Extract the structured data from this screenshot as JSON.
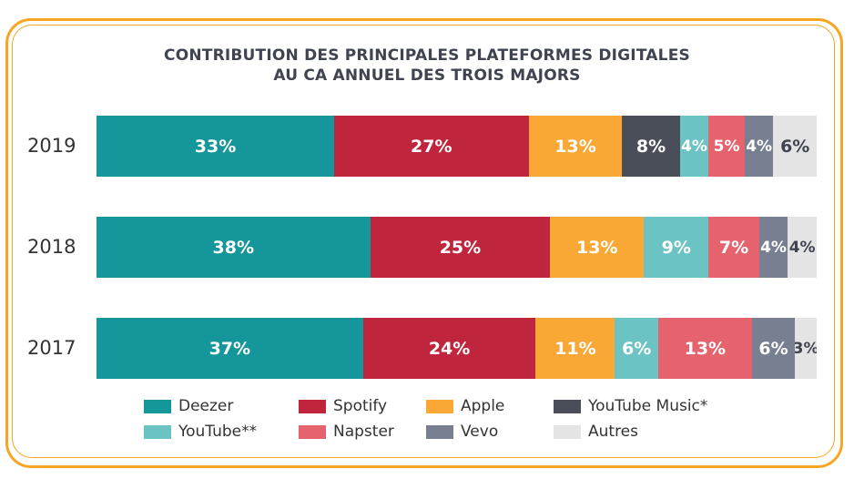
{
  "chart_data": {
    "type": "bar",
    "orientation": "horizontal",
    "stacked": true,
    "title": "CONTRIBUTION DES PRINCIPALES PLATEFORMES DIGITALES AU CA ANNUEL  DES TROIS MAJORS",
    "title_lines": [
      "CONTRIBUTION DES PRINCIPALES PLATEFORMES DIGITALES",
      "AU CA ANNUEL  DES TROIS MAJORS"
    ],
    "categories": [
      "2019",
      "2018",
      "2017"
    ],
    "series": [
      {
        "name": "Deezer",
        "color": "#14969a",
        "values": [
          33,
          38,
          37
        ],
        "labels": [
          "33%",
          "38%",
          "37%"
        ]
      },
      {
        "name": "Spotify",
        "color": "#bf263d",
        "values": [
          27,
          25,
          24
        ],
        "labels": [
          "27%",
          "25%",
          "24%"
        ]
      },
      {
        "name": "Apple",
        "color": "#f9a836",
        "values": [
          13,
          13,
          11
        ],
        "labels": [
          "13%",
          "13%",
          "11%"
        ]
      },
      {
        "name": "YouTube Music*",
        "color": "#4a4e58",
        "values": [
          8,
          0,
          0
        ],
        "labels": [
          "8%",
          "",
          ""
        ]
      },
      {
        "name": "YouTube**",
        "color": "#6cc3c3",
        "values": [
          4,
          9,
          6
        ],
        "labels": [
          "4%",
          "9%",
          "6%"
        ]
      },
      {
        "name": "Napster",
        "color": "#e4636d",
        "values": [
          5,
          7,
          13
        ],
        "labels": [
          "5%",
          "7%",
          "13%"
        ]
      },
      {
        "name": "Vevo",
        "color": "#777f90",
        "values": [
          4,
          4,
          6
        ],
        "labels": [
          "4%",
          "4%",
          "6%"
        ]
      },
      {
        "name": "Autres",
        "color": "#e4e4e4",
        "values": [
          6,
          4,
          3
        ],
        "labels": [
          "6%",
          "4%",
          "3%"
        ]
      }
    ],
    "legend_position": "bottom",
    "grid": false
  }
}
